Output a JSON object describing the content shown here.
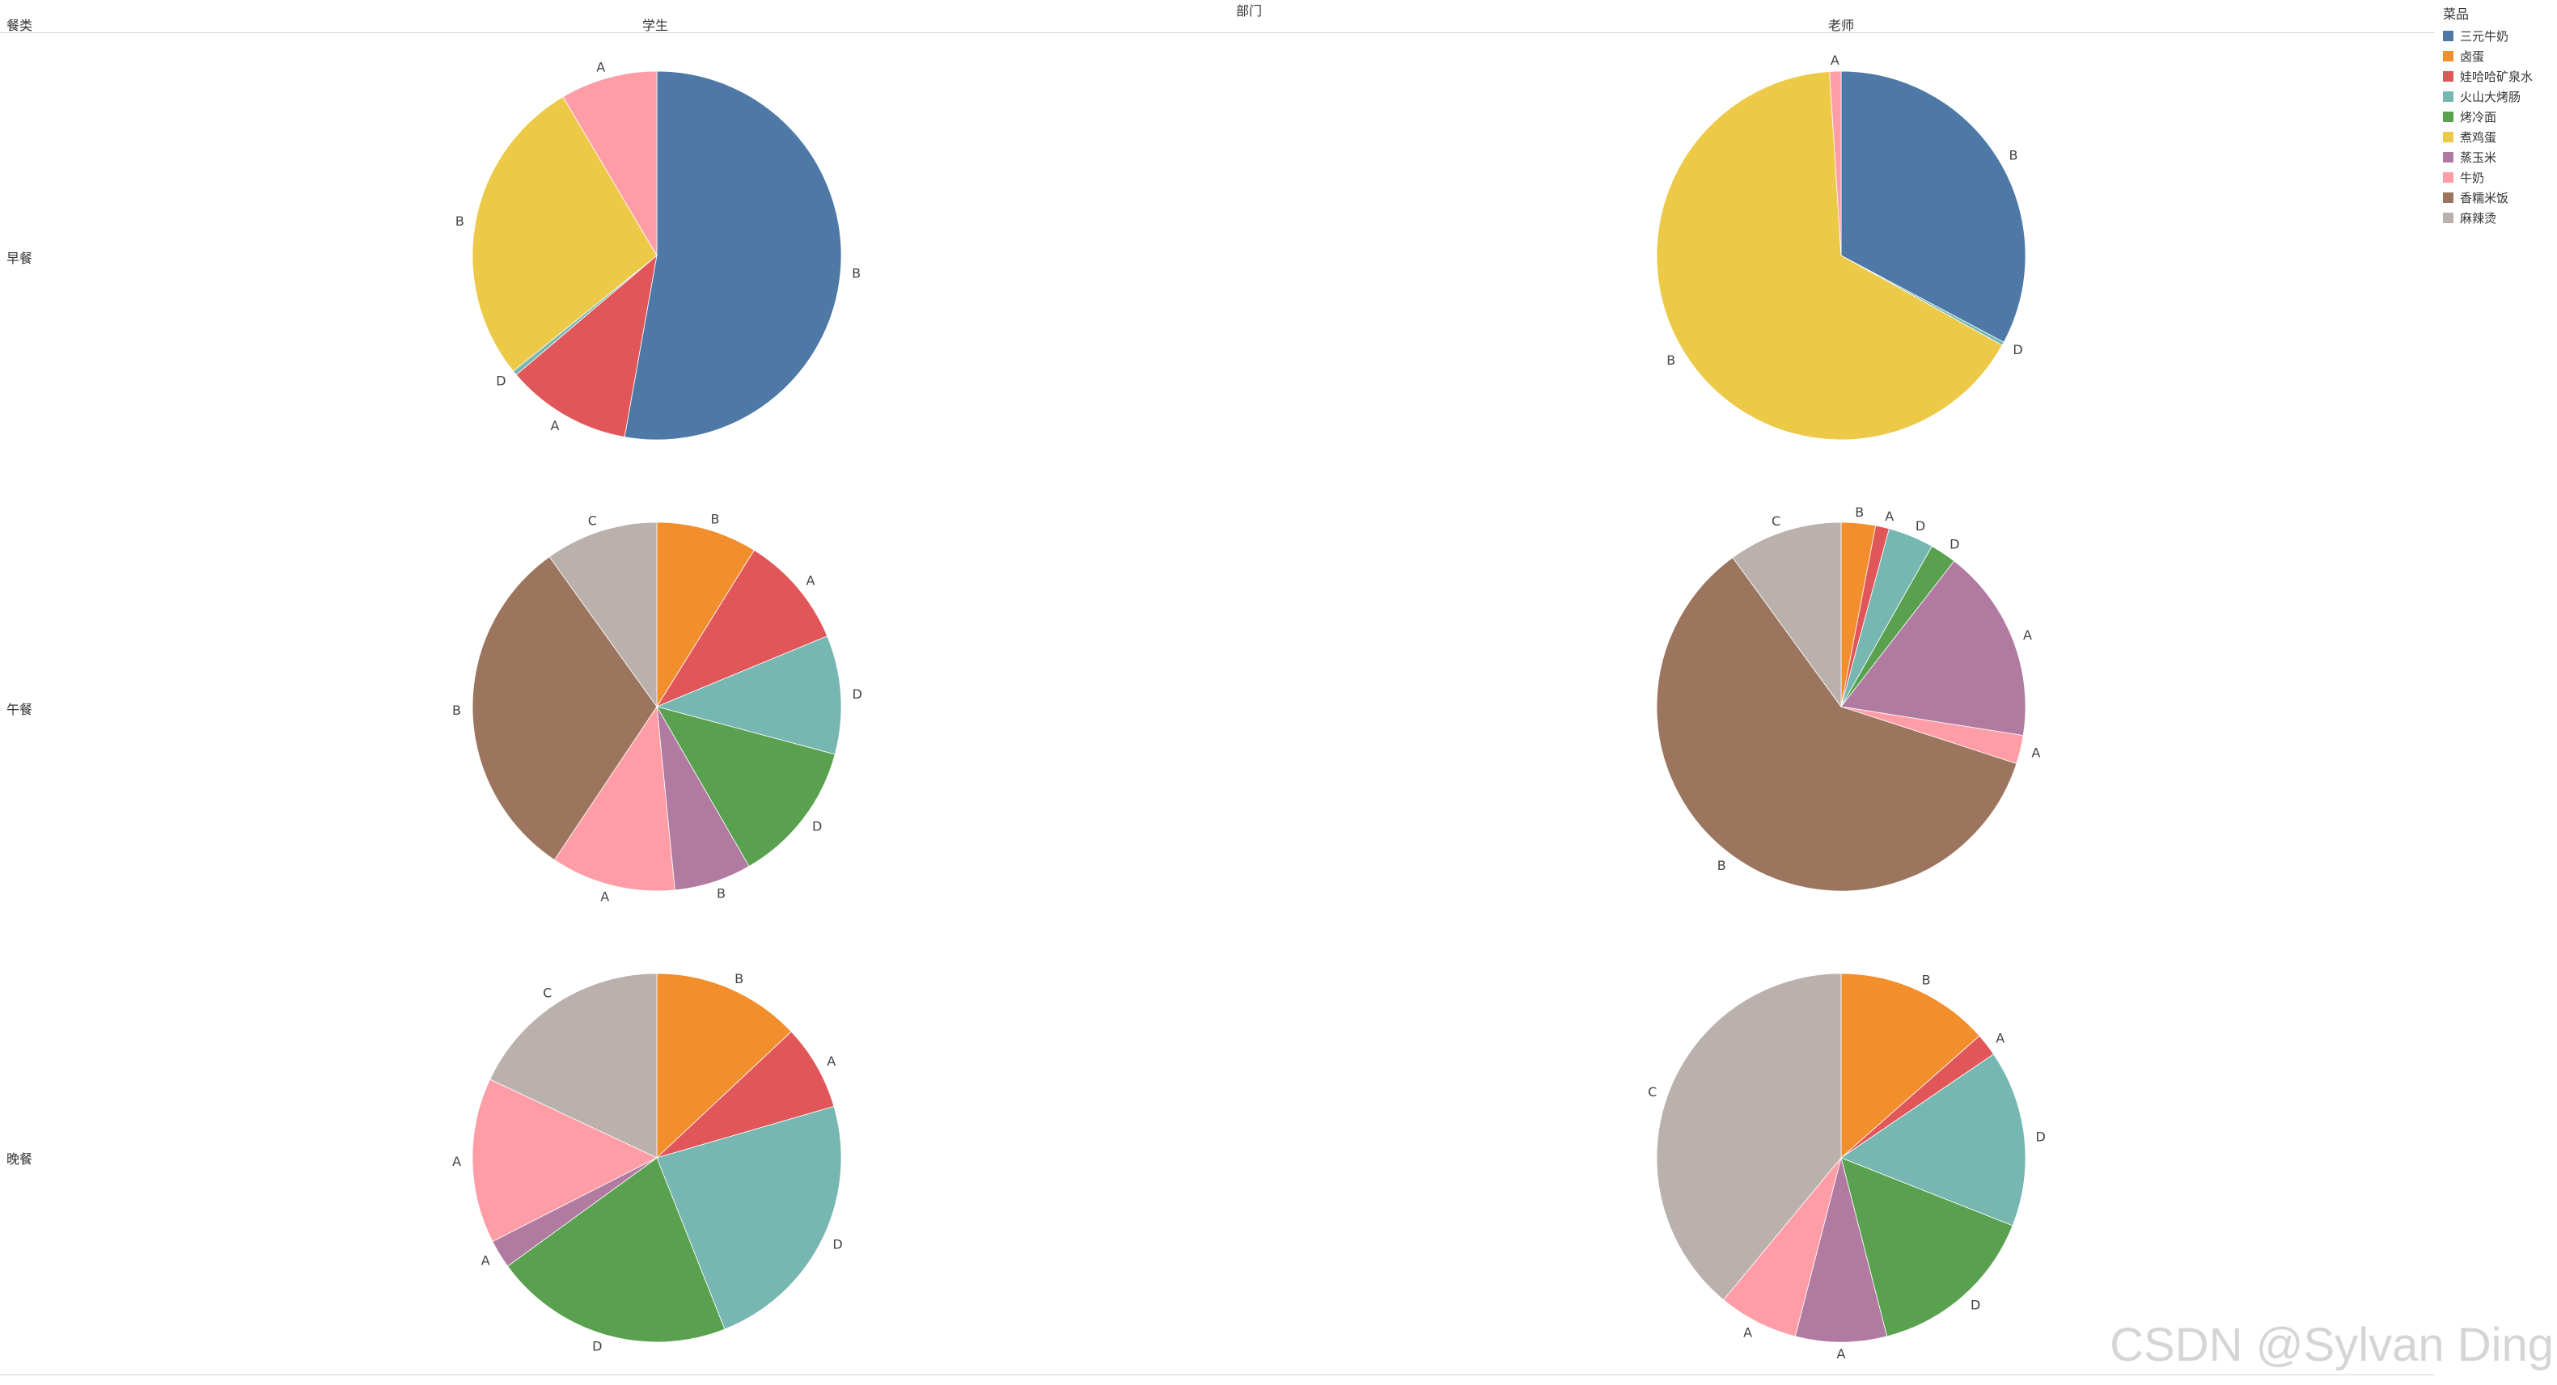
{
  "header": {
    "row_header": "餐类",
    "column_header": "部门",
    "columns": [
      "学生",
      "老师"
    ]
  },
  "rows": [
    "早餐",
    "午餐",
    "晚餐"
  ],
  "legend": {
    "title": "菜品",
    "items": [
      {
        "name": "三元牛奶",
        "color": "#4e79a7"
      },
      {
        "name": "卤蛋",
        "color": "#f28e2b"
      },
      {
        "name": "娃哈哈矿泉水",
        "color": "#e15759"
      },
      {
        "name": "火山大烤肠",
        "color": "#76b7b2"
      },
      {
        "name": "烤冷面",
        "color": "#59a14f"
      },
      {
        "name": "煮鸡蛋",
        "color": "#edc948"
      },
      {
        "name": "蒸玉米",
        "color": "#b07aa1"
      },
      {
        "name": "牛奶",
        "color": "#ff9da7"
      },
      {
        "name": "香糯米饭",
        "color": "#9c755f"
      },
      {
        "name": "麻辣烫",
        "color": "#bab0ac"
      }
    ]
  },
  "watermark": "CSDN @Sylvan Ding",
  "chart_data": [
    {
      "type": "pie",
      "row": "早餐",
      "column": "学生",
      "slices": [
        {
          "item": "三元牛奶",
          "value": 52.8,
          "label": "B"
        },
        {
          "item": "娃哈哈矿泉水",
          "value": 11.0,
          "label": "A"
        },
        {
          "item": "火山大烤肠",
          "value": 0.4,
          "label": "D"
        },
        {
          "item": "煮鸡蛋",
          "value": 27.3,
          "label": "B"
        },
        {
          "item": "牛奶",
          "value": 8.5,
          "label": "A"
        }
      ]
    },
    {
      "type": "pie",
      "row": "早餐",
      "column": "老师",
      "slices": [
        {
          "item": "三元牛奶",
          "value": 32.8,
          "label": "B"
        },
        {
          "item": "火山大烤肠",
          "value": 0.3,
          "label": "D"
        },
        {
          "item": "煮鸡蛋",
          "value": 65.9,
          "label": "B"
        },
        {
          "item": "牛奶",
          "value": 1.0,
          "label": "A"
        }
      ]
    },
    {
      "type": "pie",
      "row": "午餐",
      "column": "学生",
      "slices": [
        {
          "item": "卤蛋",
          "value": 8.5,
          "label": "B"
        },
        {
          "item": "娃哈哈矿泉水",
          "value": 9.5,
          "label": "A"
        },
        {
          "item": "火山大烤肠",
          "value": 10.0,
          "label": "D"
        },
        {
          "item": "烤冷面",
          "value": 12.0,
          "label": "D"
        },
        {
          "item": "蒸玉米",
          "value": 6.5,
          "label": "B"
        },
        {
          "item": "牛奶",
          "value": 10.5,
          "label": "A"
        },
        {
          "item": "香糯米饭",
          "value": 29.5,
          "label": "B"
        },
        {
          "item": "麻辣烫",
          "value": 9.5,
          "label": "C"
        }
      ]
    },
    {
      "type": "pie",
      "row": "午餐",
      "column": "老师",
      "slices": [
        {
          "item": "卤蛋",
          "value": 3.0,
          "label": "B"
        },
        {
          "item": "娃哈哈矿泉水",
          "value": 1.2,
          "label": "A"
        },
        {
          "item": "火山大烤肠",
          "value": 4.0,
          "label": "D"
        },
        {
          "item": "烤冷面",
          "value": 2.3,
          "label": "D"
        },
        {
          "item": "蒸玉米",
          "value": 17.0,
          "label": "A"
        },
        {
          "item": "牛奶",
          "value": 2.5,
          "label": "A"
        },
        {
          "item": "香糯米饭",
          "value": 60.0,
          "label": "B"
        },
        {
          "item": "麻辣烫",
          "value": 10.0,
          "label": "C"
        }
      ]
    },
    {
      "type": "pie",
      "row": "晚餐",
      "column": "学生",
      "slices": [
        {
          "item": "卤蛋",
          "value": 13.0,
          "label": "B"
        },
        {
          "item": "娃哈哈矿泉水",
          "value": 7.5,
          "label": "A"
        },
        {
          "item": "火山大烤肠",
          "value": 23.5,
          "label": "D"
        },
        {
          "item": "烤冷面",
          "value": 21.0,
          "label": "D"
        },
        {
          "item": "蒸玉米",
          "value": 2.5,
          "label": "A"
        },
        {
          "item": "牛奶",
          "value": 14.5,
          "label": "A"
        },
        {
          "item": "麻辣烫",
          "value": 18.0,
          "label": "C"
        }
      ]
    },
    {
      "type": "pie",
      "row": "晚餐",
      "column": "老师",
      "slices": [
        {
          "item": "卤蛋",
          "value": 13.5,
          "label": "B"
        },
        {
          "item": "娃哈哈矿泉水",
          "value": 2.0,
          "label": "A"
        },
        {
          "item": "火山大烤肠",
          "value": 15.5,
          "label": "D"
        },
        {
          "item": "烤冷面",
          "value": 15.0,
          "label": "D"
        },
        {
          "item": "蒸玉米",
          "value": 8.0,
          "label": "A"
        },
        {
          "item": "牛奶",
          "value": 7.0,
          "label": "A"
        },
        {
          "item": "麻辣烫",
          "value": 39.0,
          "label": "C"
        }
      ]
    }
  ]
}
